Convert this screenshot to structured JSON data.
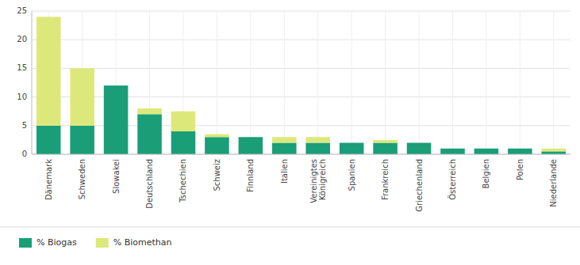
{
  "chart_data": {
    "type": "bar",
    "stacked": true,
    "categories": [
      "Dänemark",
      "Schweden",
      "Slowakei",
      "Deutschland",
      "Tschechien",
      "Schweiz",
      "Finnland",
      "Italien",
      "Vereinigtes\nKönigreich",
      "Spanien",
      "Frankreich",
      "Griechenland",
      "Österreich",
      "Belgien",
      "Polen",
      "Niederlande"
    ],
    "series": [
      {
        "name": "% Biogas",
        "color": "#1a9e78",
        "values": [
          5.0,
          5.0,
          12.0,
          7.0,
          4.0,
          3.0,
          3.0,
          2.0,
          2.0,
          2.0,
          2.0,
          2.0,
          1.0,
          1.0,
          1.0,
          0.5
        ]
      },
      {
        "name": "% Biomethan",
        "color": "#dde87a",
        "values": [
          19.0,
          10.0,
          0.0,
          1.0,
          3.5,
          0.5,
          0.0,
          1.0,
          1.0,
          0.0,
          0.5,
          0.0,
          0.0,
          0.0,
          0.0,
          0.5
        ]
      }
    ],
    "ylim": [
      0,
      25
    ],
    "yticks": [
      0,
      5,
      10,
      15,
      20,
      25
    ],
    "grid": true,
    "legend": "bottom"
  }
}
